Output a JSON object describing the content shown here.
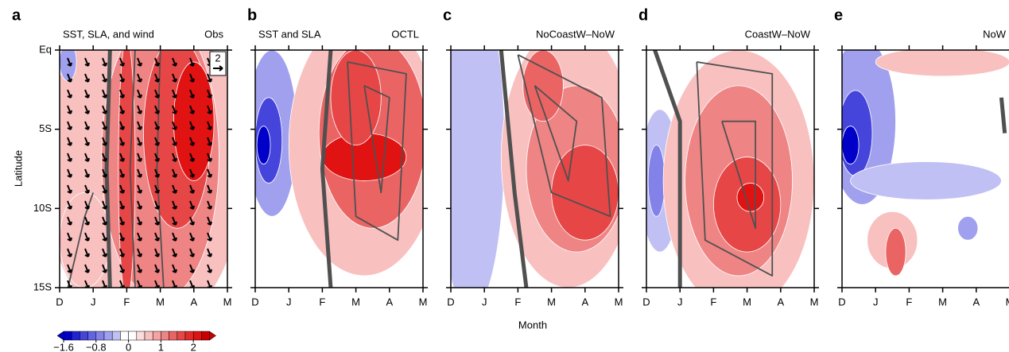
{
  "ylabel": "Latitude",
  "xlabel": "Month",
  "chart_data": [
    {
      "type": "contour",
      "letter": "a",
      "title_left": "SST, SLA, and wind",
      "title_right": "Obs",
      "vector_key": "2",
      "categories": [
        "D",
        "J",
        "F",
        "M",
        "A",
        "M"
      ],
      "ylim": [
        -15,
        0
      ],
      "yticks": [
        {
          "value": 0,
          "label": "Eq"
        },
        {
          "value": -5,
          "label": "5S"
        },
        {
          "value": -10,
          "label": "10S"
        },
        {
          "value": -15,
          "label": "15S"
        }
      ]
    },
    {
      "type": "contour",
      "letter": "b",
      "title_left": "SST and SLA",
      "title_right": "OCTL",
      "categories": [
        "D",
        "J",
        "F",
        "M",
        "A",
        "M"
      ],
      "ylim": [
        -15,
        0
      ]
    },
    {
      "type": "contour",
      "letter": "c",
      "title_right": "NoCoastW–NoW",
      "categories": [
        "D",
        "J",
        "F",
        "M",
        "A",
        "M"
      ],
      "ylim": [
        -15,
        0
      ]
    },
    {
      "type": "contour",
      "letter": "d",
      "title_right": "CoastW–NoW",
      "categories": [
        "D",
        "J",
        "F",
        "M",
        "A",
        "M"
      ],
      "ylim": [
        -15,
        0
      ]
    },
    {
      "type": "contour",
      "letter": "e",
      "title_right": "NoW",
      "categories": [
        "D",
        "J",
        "F",
        "M",
        "A",
        "M"
      ],
      "ylim": [
        -15,
        0
      ]
    }
  ],
  "colorbar": {
    "bounds": [
      -1.6,
      -1.4,
      -1.2,
      -1.0,
      -0.8,
      -0.6,
      -0.4,
      -0.2,
      0,
      0.25,
      0.5,
      0.75,
      1,
      1.25,
      1.5,
      1.75,
      2,
      2.25,
      2.5
    ],
    "colors": [
      "#0000c8",
      "#2222d4",
      "#4545dc",
      "#6464e2",
      "#8282e8",
      "#a0a0ee",
      "#c0c0f4",
      "#ffffff",
      "#ffffff",
      "#fcdcdc",
      "#f9c0c0",
      "#f4a2a2",
      "#ef8484",
      "#ea6464",
      "#e64646",
      "#e32a2a",
      "#e01212",
      "#c80000"
    ],
    "ticks": [
      {
        "value": -1.6,
        "label": "−1.6"
      },
      {
        "value": -0.8,
        "label": "−0.8"
      },
      0,
      1,
      2
    ]
  }
}
